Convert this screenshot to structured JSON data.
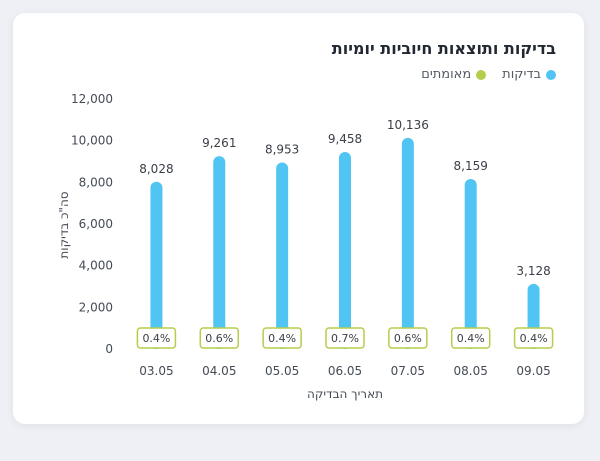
{
  "chart_data": {
    "type": "bar",
    "title": "בדיקות ותוצאות חיוביות יומיות",
    "xlabel": "תאריך הבדיקה",
    "ylabel": "סה\"כ בדיקות",
    "categories": [
      "03.05",
      "04.05",
      "05.05",
      "06.05",
      "07.05",
      "08.05",
      "09.05"
    ],
    "series": [
      {
        "name": "בדיקות",
        "color": "#50c4f2",
        "values": [
          8028,
          9261,
          8953,
          9458,
          10136,
          8159,
          3128
        ]
      }
    ],
    "value_labels": [
      "8,028",
      "9,261",
      "8,953",
      "9,458",
      "10,136",
      "8,159",
      "3,128"
    ],
    "positive_rate_labels": [
      "0.4%",
      "0.6%",
      "0.4%",
      "0.7%",
      "0.6%",
      "0.4%",
      "0.4%"
    ],
    "legend": [
      {
        "label": "בדיקות",
        "color": "#50c4f2"
      },
      {
        "label": "מאומתים",
        "color": "#b5cd4c"
      }
    ],
    "ylim": [
      0,
      12000
    ],
    "yticks": [
      "0",
      "2,000",
      "4,000",
      "6,000",
      "8,000",
      "10,000",
      "12,000"
    ],
    "grid": false,
    "legend_position": "top-right"
  }
}
